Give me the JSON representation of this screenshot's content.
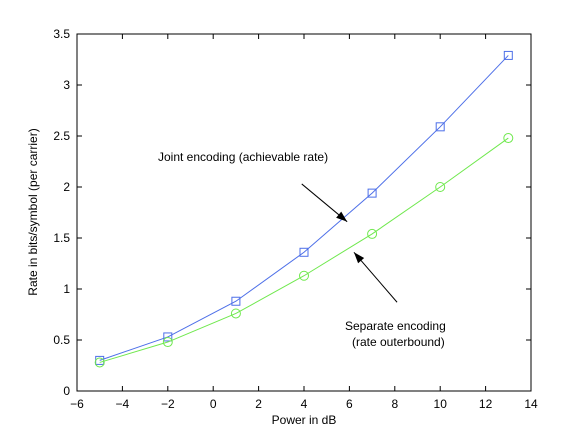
{
  "chart_data": {
    "type": "line",
    "xlabel": "Power in dB",
    "ylabel": "Rate in bits/symbol (per carrier)",
    "xlim": [
      -6,
      14
    ],
    "ylim": [
      0,
      3.5
    ],
    "xticks": [
      -6,
      -4,
      -2,
      0,
      2,
      4,
      6,
      8,
      10,
      12,
      14
    ],
    "yticks": [
      0,
      0.5,
      1,
      1.5,
      2,
      2.5,
      3,
      3.5
    ],
    "xtick_labels": [
      "−6",
      "−4",
      "−2",
      "0",
      "2",
      "4",
      "6",
      "8",
      "10",
      "12",
      "14"
    ],
    "ytick_labels": [
      "0",
      "0.5",
      "1",
      "1.5",
      "2",
      "2.5",
      "3",
      "3.5"
    ],
    "grid": false,
    "series": [
      {
        "color": "#4d6fe8",
        "marker": "square",
        "x": [
          -5,
          -2,
          1,
          4,
          7,
          10,
          13
        ],
        "y": [
          0.3,
          0.53,
          0.88,
          1.36,
          1.94,
          2.59,
          3.29
        ]
      },
      {
        "color": "#6fe84d",
        "marker": "circle",
        "x": [
          -5,
          -2,
          1,
          4,
          7,
          10,
          13
        ],
        "y": [
          0.28,
          0.48,
          0.76,
          1.13,
          1.54,
          2.0,
          2.48
        ]
      }
    ],
    "annotations": [
      {
        "lines": [
          "Joint encoding (achievable rate)"
        ],
        "arrow_from": [
          3.9,
          2.03
        ],
        "arrow_to": [
          5.9,
          1.66
        ]
      },
      {
        "lines": [
          "Separate encoding",
          "(rate outerbound)"
        ],
        "arrow_from": [
          8.1,
          0.87
        ],
        "arrow_to": [
          6.2,
          1.36
        ]
      }
    ]
  }
}
